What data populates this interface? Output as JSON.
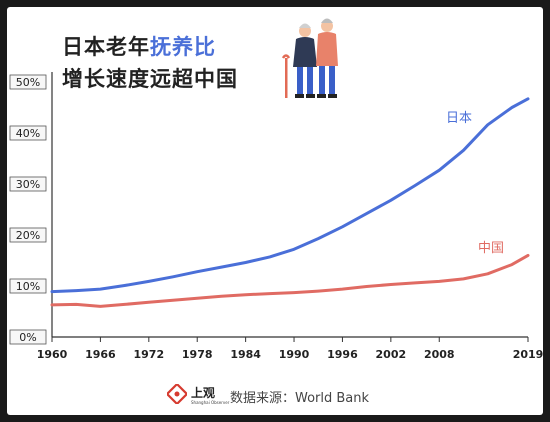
{
  "title": {
    "line1_prefix": "日本老年",
    "line1_accent": "抚养比",
    "line2": "增长速度远超中国"
  },
  "footer": {
    "brand": "上观",
    "brand_sub": "Shanghai Observer",
    "source": "数据来源：World Bank"
  },
  "chart_data": {
    "type": "line",
    "x_ticks": [
      "1960",
      "1966",
      "1972",
      "1978",
      "1984",
      "1990",
      "1996",
      "2002",
      "2008",
      "2019"
    ],
    "y_ticks": [
      "0%",
      "10%",
      "20%",
      "30%",
      "40%",
      "50%"
    ],
    "ylim": [
      0,
      50
    ],
    "xlim": [
      1960,
      2019
    ],
    "grid": false,
    "series": [
      {
        "name": "日本",
        "color": "#4a6fd8",
        "x": [
          1960,
          1963,
          1966,
          1969,
          1972,
          1975,
          1978,
          1981,
          1984,
          1987,
          1990,
          1993,
          1996,
          1999,
          2002,
          2005,
          2008,
          2011,
          2014,
          2017,
          2019
        ],
        "y": [
          8.9,
          9.1,
          9.4,
          10.1,
          10.9,
          11.8,
          12.8,
          13.7,
          14.6,
          15.7,
          17.2,
          19.3,
          21.6,
          24.2,
          26.8,
          29.7,
          32.7,
          36.6,
          41.6,
          45.0,
          46.7
        ]
      },
      {
        "name": "中国",
        "color": "#e06b63",
        "x": [
          1960,
          1963,
          1966,
          1969,
          1972,
          1975,
          1978,
          1981,
          1984,
          1987,
          1990,
          1993,
          1996,
          1999,
          2002,
          2005,
          2008,
          2011,
          2014,
          2017,
          2019
        ],
        "y": [
          6.3,
          6.4,
          6.0,
          6.4,
          6.8,
          7.2,
          7.6,
          8.0,
          8.3,
          8.5,
          8.7,
          9.0,
          9.4,
          9.9,
          10.3,
          10.6,
          10.9,
          11.4,
          12.4,
          14.2,
          16.0
        ]
      }
    ]
  }
}
